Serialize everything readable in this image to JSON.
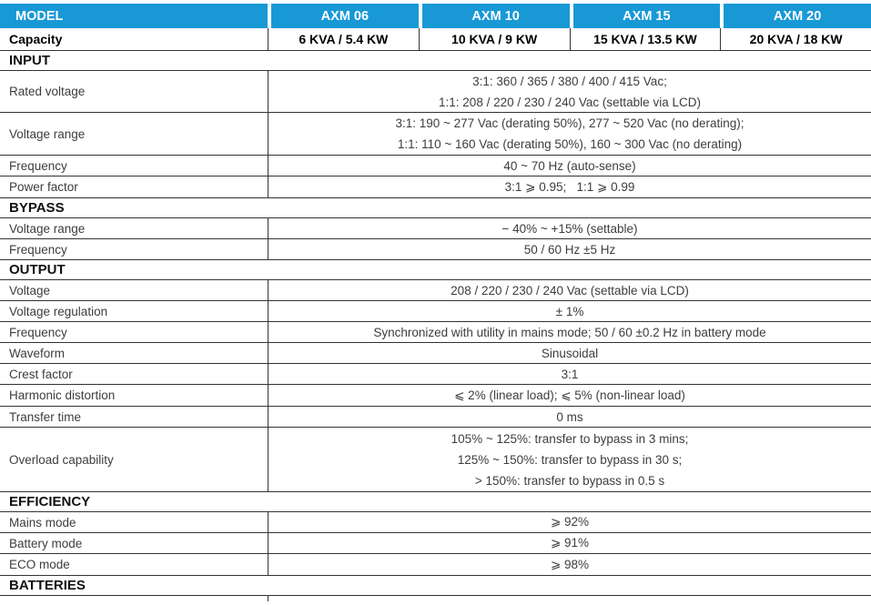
{
  "colors": {
    "header_blue": "#1899d6",
    "line": "#333333"
  },
  "header": {
    "model_label": "MODEL",
    "models": [
      "AXM 06",
      "AXM 10",
      "AXM 15",
      "AXM 20"
    ]
  },
  "capacity": {
    "label": "Capacity",
    "values": [
      "6 KVA / 5.4 KW",
      "10 KVA / 9 KW",
      "15 KVA / 13.5 KW",
      "20 KVA / 18 KW"
    ]
  },
  "input": {
    "title": "INPUT",
    "rated_voltage": {
      "label": "Rated voltage",
      "line1": "3:1: 360 / 365 / 380 / 400 / 415 Vac;",
      "line2": "1:1: 208 / 220 / 230 / 240 Vac (settable via LCD)"
    },
    "voltage_range": {
      "label": "Voltage range",
      "line1": "3:1: 190 ~ 277 Vac (derating 50%), 277 ~ 520 Vac (no derating);",
      "line2": "1:1: 110 ~ 160 Vac (derating 50%), 160 ~ 300 Vac (no derating)"
    },
    "frequency": {
      "label": "Frequency",
      "value": "40 ~ 70 Hz (auto-sense)"
    },
    "power_factor": {
      "label": "Power factor",
      "value": "3:1 ⩾ 0.95;   1:1 ⩾ 0.99"
    }
  },
  "bypass": {
    "title": "BYPASS",
    "voltage_range": {
      "label": "Voltage range",
      "value": "− 40% ~ +15% (settable)"
    },
    "frequency": {
      "label": "Frequency",
      "value": "50 / 60 Hz ±5 Hz"
    }
  },
  "output": {
    "title": "OUTPUT",
    "voltage": {
      "label": "Voltage",
      "value": "208 / 220 / 230 / 240 Vac (settable via LCD)"
    },
    "voltage_regulation": {
      "label": "Voltage regulation",
      "value": "± 1%"
    },
    "frequency": {
      "label": "Frequency",
      "value": "Synchronized with utility in mains mode; 50 / 60 ±0.2 Hz in battery mode"
    },
    "waveform": {
      "label": "Waveform",
      "value": "Sinusoidal"
    },
    "crest_factor": {
      "label": "Crest factor",
      "value": "3:1"
    },
    "harmonic_distortion": {
      "label": "Harmonic distortion",
      "value": "⩽ 2% (linear load); ⩽ 5% (non-linear load)"
    },
    "transfer_time": {
      "label": "Transfer time",
      "value": "0 ms"
    },
    "overload": {
      "label": "Overload capability",
      "line1": "105% ~ 125%: transfer to bypass in 3 mins;",
      "line2": "125% ~ 150%: transfer to bypass in 30 s;",
      "line3": "> 150%: transfer to bypass in 0.5 s"
    }
  },
  "efficiency": {
    "title": "EFFICIENCY",
    "mains_mode": {
      "label": "Mains mode",
      "value": "⩾ 92%"
    },
    "battery_mode": {
      "label": "Battery mode",
      "value": "⩾ 91%"
    },
    "eco_mode": {
      "label": "ECO mode",
      "value": "⩾ 98%"
    }
  },
  "batteries": {
    "title": "BATTERIES"
  }
}
